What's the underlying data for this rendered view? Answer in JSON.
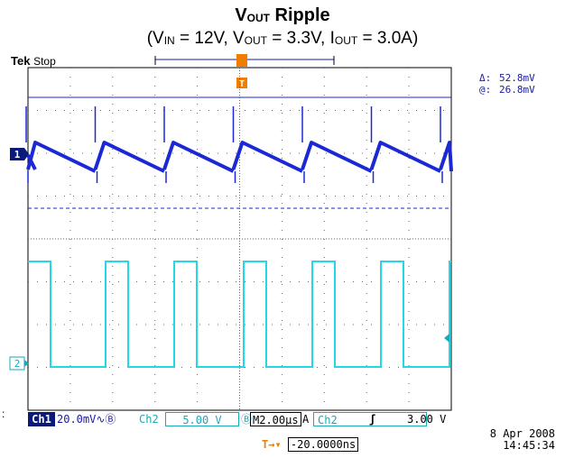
{
  "title": {
    "main": "V",
    "sub": "OUT",
    "rest": " Ripple"
  },
  "subtitle": {
    "open": "(V",
    "vin_sub": "IN",
    "vin_val": " = 12V, V",
    "vout_sub": "OUT",
    "vout_val": " = 3.3V, I",
    "iout_sub": "OUT",
    "iout_val": " = 3.0A)"
  },
  "scope": {
    "brand": "Tek",
    "state": "Stop",
    "trigger_marker": "T",
    "ch1_marker": "1",
    "ch2_marker": "2"
  },
  "cursor": {
    "delta_label": "Δ:",
    "delta_value": "52.8mV",
    "at_label": "@:",
    "at_value": "26.8mV"
  },
  "status": {
    "ch1_tag": "Ch1",
    "ch1_scale": "20.0mV",
    "ch1_coupling": "∿Ⓑ",
    "ch2_tag": "Ch2",
    "ch2_scale": "5.00 V",
    "ch2_bw": "Ⓑ",
    "timebase_label": "M",
    "timebase": "2.00μs",
    "trig_mode": "A",
    "trig_src": "Ch2",
    "trig_slope": "ʃ",
    "trig_level": "3.00 V"
  },
  "datetime": {
    "date": "8 Apr 2008",
    "time": "14:45:34"
  },
  "hpos": {
    "icon": "T→▾",
    "value": "-20.0000ns"
  },
  "colors": {
    "ch1": "#1a28d6",
    "ch2": "#22d8e6",
    "trigger": "#f07d00",
    "grid": "#555555"
  }
}
